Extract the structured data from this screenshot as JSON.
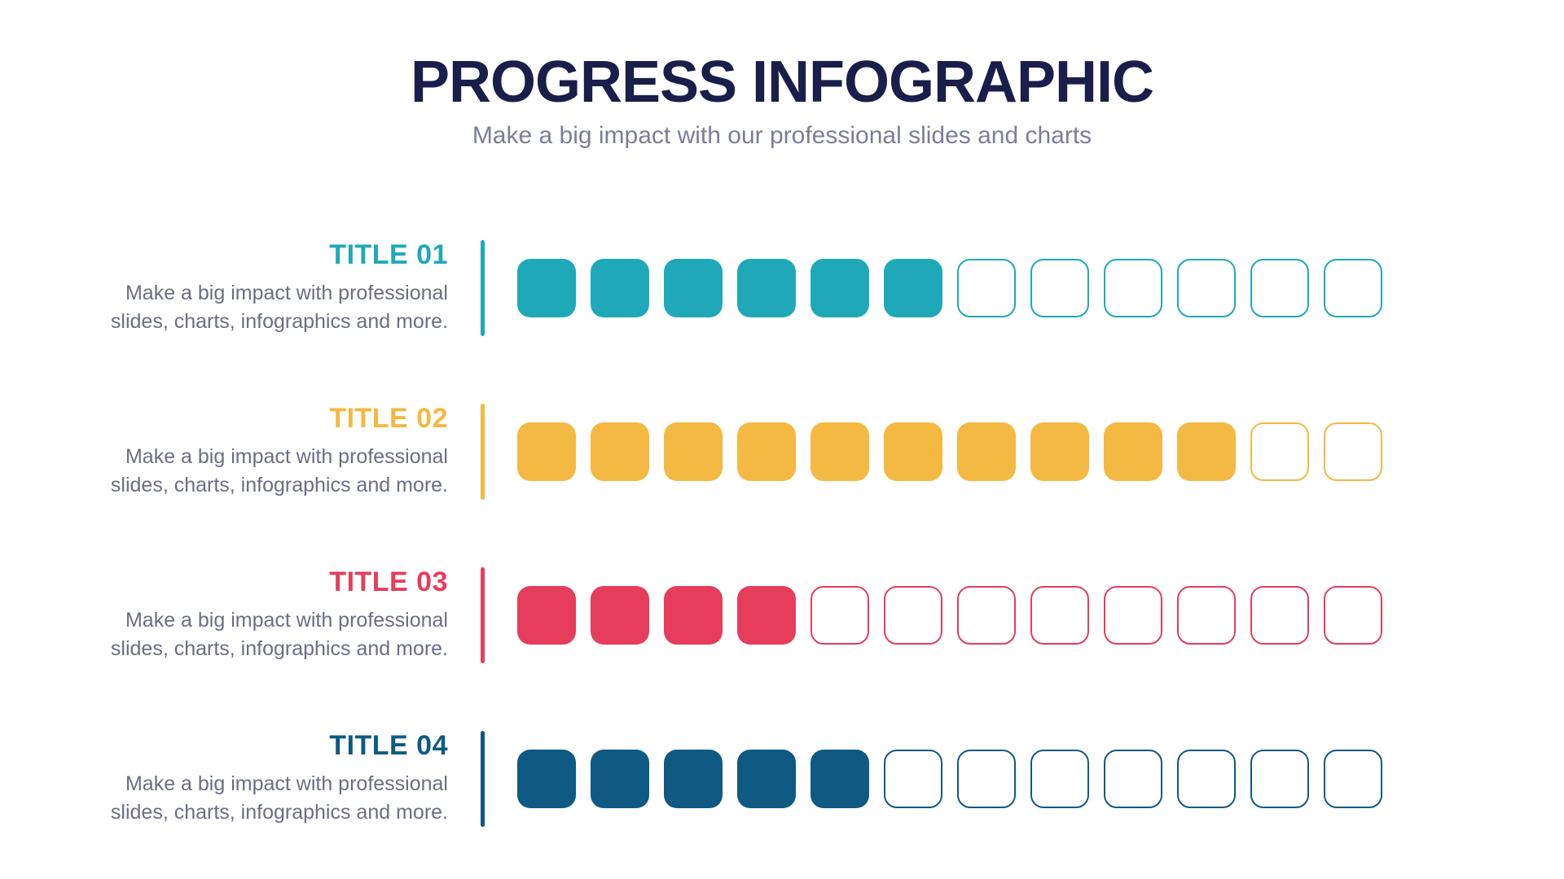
{
  "header": {
    "title": "PROGRESS INFOGRAPHIC",
    "subtitle": "Make a big impact with our professional slides and charts",
    "title_color": "#1a1e4a",
    "subtitle_color": "#7a7e9a",
    "title_fontsize": 72,
    "subtitle_fontsize": 30
  },
  "layout": {
    "background_color": "#ffffff",
    "total_squares": 12,
    "square_size": 72,
    "square_border_radius": 16,
    "square_gap": 18,
    "row_gap": 82,
    "divider_width": 5,
    "divider_height": 118
  },
  "rows": [
    {
      "title": "TITLE 01",
      "description": "Make a big impact with professional slides, charts, infographics and more.",
      "color": "#1fa9b8",
      "filled": 6
    },
    {
      "title": "TITLE 02",
      "description": "Make a big impact with professional slides, charts, infographics and more.",
      "color": "#f4b942",
      "filled": 10
    },
    {
      "title": "TITLE 03",
      "description": "Make a big impact with professional slides, charts, infographics and more.",
      "color": "#e63d5c",
      "filled": 4
    },
    {
      "title": "TITLE 04",
      "description": "Make a big impact with professional slides, charts, infographics and more.",
      "color": "#0f5a82",
      "filled": 5
    }
  ]
}
